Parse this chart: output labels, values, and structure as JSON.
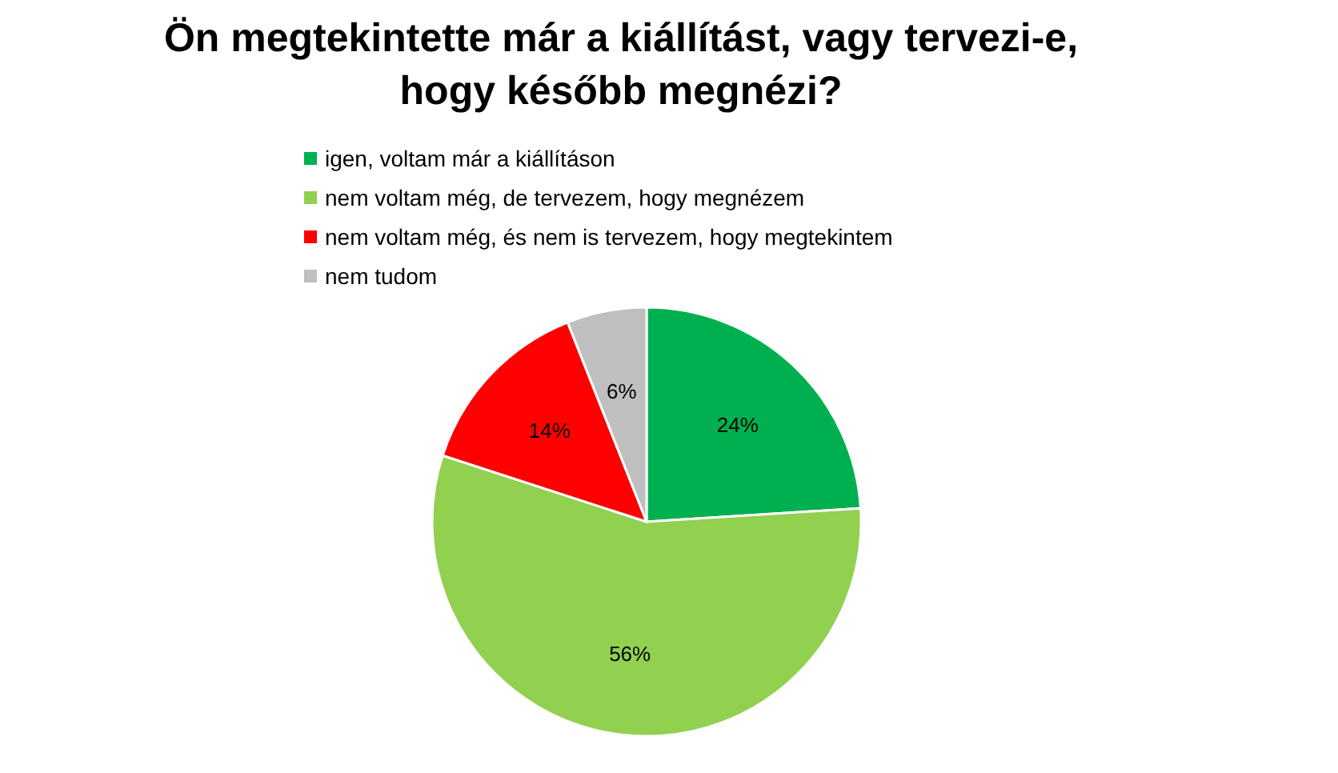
{
  "chart_data": {
    "type": "pie",
    "title": "Ön megtekintette már a kiállítást, vagy tervezi-e,\nhogy később megnézi?",
    "categories": [
      "igen, voltam már a kiállításon",
      "nem voltam még, de tervezem, hogy megnézem",
      "nem voltam még, és nem is tervezem, hogy megtekintem",
      "nem tudom"
    ],
    "values": [
      24,
      56,
      14,
      6
    ],
    "colors": [
      "#00b050",
      "#92d050",
      "#ff0000",
      "#bfbfbf"
    ],
    "value_labels": [
      "24%",
      "56%",
      "14%",
      "6%"
    ],
    "legend": "top"
  }
}
